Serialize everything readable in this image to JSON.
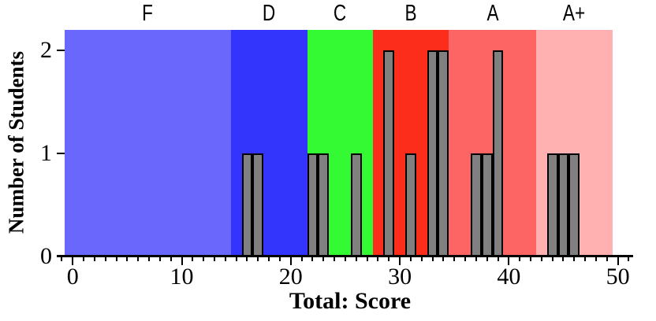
{
  "figure": {
    "background": "#ffffff",
    "text_color": "#000000"
  },
  "chart_data": {
    "type": "bar",
    "subtype": "histogram",
    "title": "",
    "xlabel": "Total: Score",
    "ylabel": "Number of Students",
    "xlim": [
      -0.74,
      51.4
    ],
    "ylim": [
      0,
      2.2
    ],
    "x_ticks_major": [
      0,
      10,
      20,
      30,
      40,
      50
    ],
    "x_minor_tick_step": 1,
    "x_minor_tick_range": [
      -1,
      51
    ],
    "y_ticks": [
      0,
      1,
      2
    ],
    "grid": false,
    "legend": "none",
    "bar_width": 1,
    "bar_fill": "#808080",
    "bar_stroke": "#000000",
    "bars": [
      {
        "score": 16,
        "count": 1
      },
      {
        "score": 17,
        "count": 1
      },
      {
        "score": 22,
        "count": 1
      },
      {
        "score": 23,
        "count": 1
      },
      {
        "score": 26,
        "count": 1
      },
      {
        "score": 29,
        "count": 2
      },
      {
        "score": 31,
        "count": 1
      },
      {
        "score": 33,
        "count": 2
      },
      {
        "score": 34,
        "count": 2
      },
      {
        "score": 37,
        "count": 1
      },
      {
        "score": 38,
        "count": 1
      },
      {
        "score": 39,
        "count": 2
      },
      {
        "score": 44,
        "count": 1
      },
      {
        "score": 45,
        "count": 1
      },
      {
        "score": 46,
        "count": 1
      }
    ],
    "grade_bands": [
      {
        "label": "F",
        "from": -0.74,
        "to": 14.5,
        "color": "#6A67FC"
      },
      {
        "label": "D",
        "from": 14.5,
        "to": 21.5,
        "color": "#3335FC"
      },
      {
        "label": "C",
        "from": 21.5,
        "to": 27.5,
        "color": "#33FA33"
      },
      {
        "label": "B",
        "from": 27.5,
        "to": 34.5,
        "color": "#FC2E1B"
      },
      {
        "label": "A",
        "from": 34.5,
        "to": 42.5,
        "color": "#FD6565"
      },
      {
        "label": "A+",
        "from": 42.5,
        "to": 49.5,
        "color": "#FFB0B1"
      }
    ]
  }
}
